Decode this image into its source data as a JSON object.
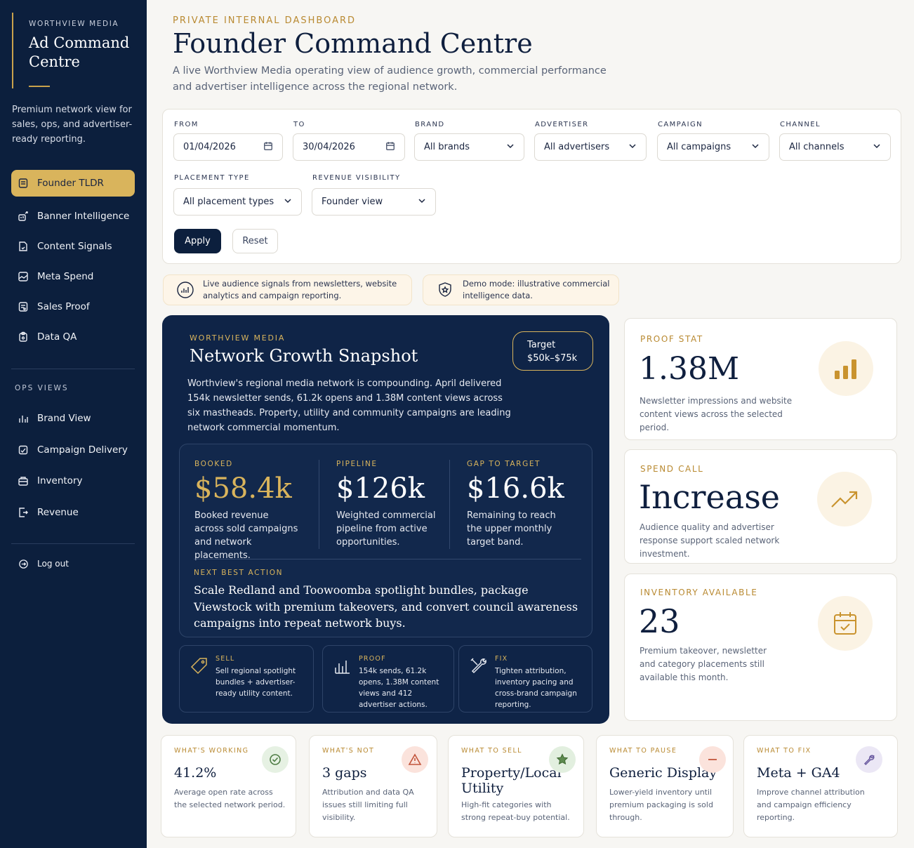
{
  "sidebar": {
    "kicker": "WORTHVIEW MEDIA",
    "title_line1": "Ad Command",
    "title_line2": "Centre",
    "description": "Premium network view for sales, ops, and advertiser-ready reporting.",
    "nav": [
      {
        "label": "Founder TLDR",
        "icon": "document-icon"
      },
      {
        "label": "Banner Intelligence",
        "icon": "chart-icon"
      },
      {
        "label": "Content Signals",
        "icon": "file-icon"
      },
      {
        "label": "Meta Spend",
        "icon": "image-icon"
      },
      {
        "label": "Sales Proof",
        "icon": "receipt-icon"
      },
      {
        "label": "Data QA",
        "icon": "clipboard-icon"
      }
    ],
    "ops_label": "OPS VIEWS",
    "ops_nav": [
      {
        "label": "Brand View",
        "icon": "bar-chart-icon"
      },
      {
        "label": "Campaign Delivery",
        "icon": "delivery-icon"
      },
      {
        "label": "Inventory",
        "icon": "inventory-icon"
      },
      {
        "label": "Revenue",
        "icon": "revenue-icon"
      }
    ],
    "logout": "Log out"
  },
  "header": {
    "kicker": "PRIVATE INTERNAL DASHBOARD",
    "title": "Founder Command Centre",
    "subtitle": "A live Worthview Media operating view of audience growth, commercial performance and advertiser intelligence across the regional network."
  },
  "filters": {
    "from_label": "FROM",
    "from_value": "01/04/2026",
    "to_label": "TO",
    "to_value": "30/04/2026",
    "brand_label": "BRAND",
    "brand_value": "All brands",
    "advertiser_label": "ADVERTISER",
    "advertiser_value": "All advertisers",
    "campaign_label": "CAMPAIGN",
    "campaign_value": "All campaigns",
    "channel_label": "CHANNEL",
    "channel_value": "All channels",
    "placement_label": "PLACEMENT TYPE",
    "placement_value": "All placement types",
    "visibility_label": "REVENUE VISIBILITY",
    "visibility_value": "Founder view",
    "apply": "Apply",
    "reset": "Reset"
  },
  "notices": {
    "live": "Live audience signals from newsletters, website analytics and campaign reporting.",
    "demo": "Demo mode: illustrative commercial intelligence data."
  },
  "snapshot": {
    "kicker": "WORTHVIEW MEDIA",
    "title": "Network Growth Snapshot",
    "target_label": "Target",
    "target_value": "$50k–$75k",
    "description": "Worthview's regional media network is compounding. April delivered 154k newsletter sends, 61.2k opens and 1.38M content views across six mastheads. Property, utility and community campaigns are leading network commercial momentum.",
    "booked_label": "BOOKED",
    "booked_value": "$58.4k",
    "booked_desc": "Booked revenue across sold campaigns and network placements.",
    "pipeline_label": "PIPELINE",
    "pipeline_value": "$126k",
    "pipeline_desc": "Weighted commercial pipeline from active opportunities.",
    "gap_label": "GAP TO TARGET",
    "gap_value": "$16.6k",
    "gap_desc": "Remaining to reach the upper monthly target band.",
    "nba_label": "NEXT BEST ACTION",
    "nba_text": "Scale Redland and Toowoomba spotlight bundles, package Viewstock with premium takeovers, and convert council awareness campaigns into repeat network buys.",
    "sell_label": "SELL",
    "sell_text": "Sell regional spotlight bundles + advertiser-ready utility content.",
    "proof_label": "PROOF",
    "proof_text": "154k sends, 61.2k opens, 1.38M content views and 412 advertiser actions.",
    "fix_label": "FIX",
    "fix_text": "Tighten attribution, inventory pacing and cross-brand campaign reporting."
  },
  "stats": {
    "proof_label": "PROOF STAT",
    "proof_value": "1.38M",
    "proof_desc": "Newsletter impressions and website content views across the selected period.",
    "spend_label": "SPEND CALL",
    "spend_value": "Increase",
    "spend_desc": "Audience quality and advertiser response support scaled network investment.",
    "inventory_label": "INVENTORY AVAILABLE",
    "inventory_value": "23",
    "inventory_desc": "Premium takeover, newsletter and category placements still available this month."
  },
  "cards": {
    "working_label": "WHAT'S WORKING",
    "working_value": "41.2%",
    "working_desc": "Average open rate across the selected network period.",
    "not_label": "WHAT'S NOT",
    "not_value": "3 gaps",
    "not_desc": "Attribution and data QA issues still limiting full visibility.",
    "sell_label": "WHAT TO SELL",
    "sell_value": "Property/Local Utility",
    "sell_desc": "High-fit categories with strong repeat-buy potential.",
    "pause_label": "WHAT TO PAUSE",
    "pause_value": "Generic Display",
    "pause_desc": "Lower-yield inventory until premium packaging is sold through.",
    "fix_label": "WHAT TO FIX",
    "fix_value": "Meta + GA4",
    "fix_desc": "Improve channel attribution and campaign efficiency reporting."
  },
  "colors": {
    "navy": "#0c1f3d",
    "gold": "#d9b45c",
    "accent": "#b98a32"
  }
}
